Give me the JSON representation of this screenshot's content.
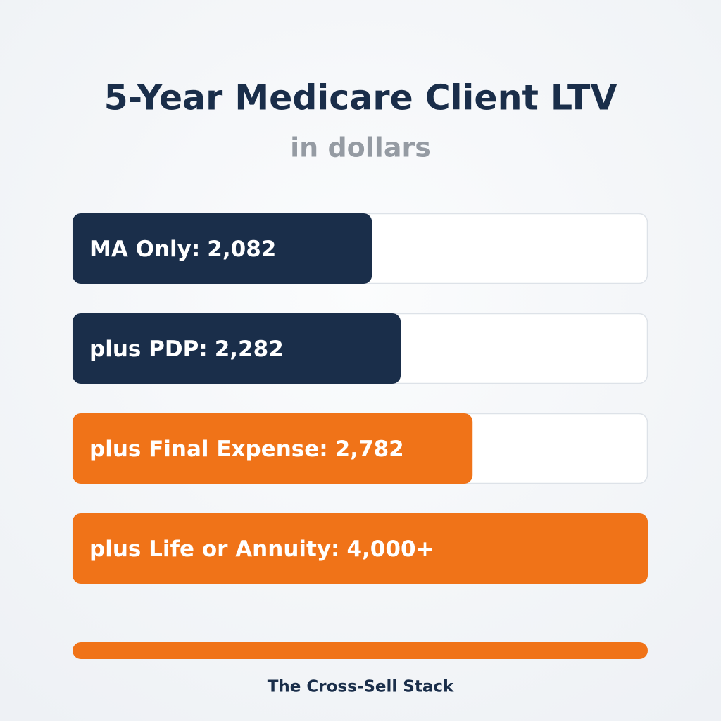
{
  "chart_data": {
    "type": "bar",
    "orientation": "horizontal",
    "title": "5-Year Medicare Client LTV",
    "subtitle": "in dollars",
    "categories": [
      "MA Only:",
      "plus PDP:",
      "plus Final Expense:",
      "plus Life or Annuity:"
    ],
    "values": [
      2082,
      2282,
      2782,
      4000
    ],
    "value_labels": [
      "2,082",
      "2,282",
      "2,782",
      "4,000+"
    ],
    "colors": [
      "#1a2e4a",
      "#1a2e4a",
      "#f07318",
      "#f07318"
    ],
    "xlim": [
      0,
      4000
    ],
    "footer": "The Cross-Sell Stack"
  }
}
